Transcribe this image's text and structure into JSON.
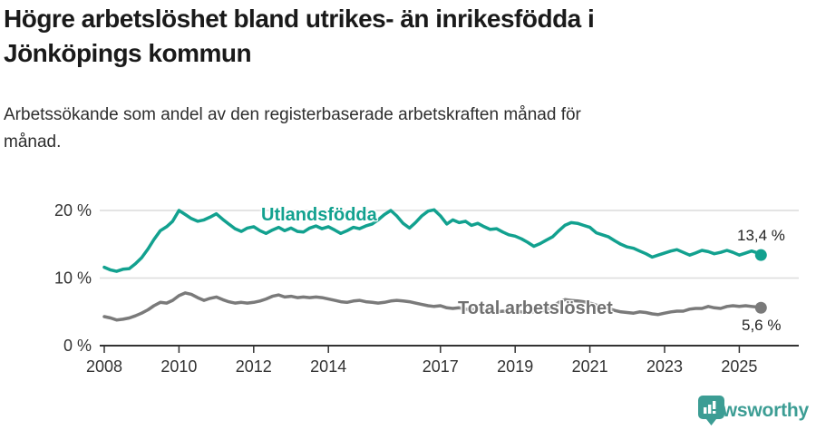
{
  "header": {
    "title": "Högre arbetslöshet bland utrikes- än inrikesfödda i\nJönköpings kommun",
    "subtitle": "Arbetssökande som andel av den registerbaserade arbetskraften månad för\nmånad."
  },
  "branding": {
    "logo_text": "Newsworthy",
    "logo_icon": "bar-chart-speech-bubble-icon",
    "logo_color": "#3c9d94"
  },
  "colors": {
    "series_foreign_born": "#12a18f",
    "series_total": "#7a7a7a",
    "grid": "#dcdcdc",
    "axis": "#333333",
    "title_text": "#1a1a1a",
    "background": "#ffffff"
  },
  "chart_data": {
    "type": "line",
    "title": "Högre arbetslöshet bland utrikes- än inrikesfödda i Jönköpings kommun",
    "subtitle": "Arbetssökande som andel av den registerbaserade arbetskraften månad för månad.",
    "x_unit": "decimal_year",
    "xlim": [
      2008,
      2025.6
    ],
    "ylim": [
      0,
      21.5
    ],
    "grid": "horizontal",
    "yticks": [
      {
        "value": 0,
        "label": "0 %"
      },
      {
        "value": 10,
        "label": "10 %"
      },
      {
        "value": 20,
        "label": "20 %"
      }
    ],
    "xticks": [
      {
        "value": 2008,
        "label": "2008"
      },
      {
        "value": 2010,
        "label": "2010"
      },
      {
        "value": 2012,
        "label": "2012"
      },
      {
        "value": 2014,
        "label": "2014"
      },
      {
        "value": 2017,
        "label": "2017"
      },
      {
        "value": 2019,
        "label": "2019"
      },
      {
        "value": 2021,
        "label": "2021"
      },
      {
        "value": 2023,
        "label": "2023"
      },
      {
        "value": 2025,
        "label": "2025"
      }
    ],
    "series": [
      {
        "name": "Utlandsfödda",
        "color": "#12a18f",
        "end_label": "13,4 %",
        "end_value": 13.4,
        "point_index": 1
      },
      {
        "name": "Total arbetslöshet",
        "color": "#7a7a7a",
        "end_label": "5,6 %",
        "end_value": 5.6,
        "point_index": 2
      }
    ],
    "points": [
      [
        2008.0,
        11.6,
        4.3
      ],
      [
        2008.17,
        11.2,
        4.1
      ],
      [
        2008.33,
        11.0,
        3.8
      ],
      [
        2008.5,
        11.3,
        3.9
      ],
      [
        2008.67,
        11.4,
        4.1
      ],
      [
        2008.83,
        12.1,
        4.4
      ],
      [
        2009.0,
        13.0,
        4.8
      ],
      [
        2009.17,
        14.3,
        5.3
      ],
      [
        2009.33,
        15.7,
        5.9
      ],
      [
        2009.5,
        17.0,
        6.4
      ],
      [
        2009.67,
        17.6,
        6.3
      ],
      [
        2009.83,
        18.4,
        6.7
      ],
      [
        2010.0,
        20.0,
        7.4
      ],
      [
        2010.17,
        19.4,
        7.8
      ],
      [
        2010.33,
        18.8,
        7.6
      ],
      [
        2010.5,
        18.4,
        7.1
      ],
      [
        2010.67,
        18.6,
        6.7
      ],
      [
        2010.83,
        19.0,
        7.0
      ],
      [
        2011.0,
        19.5,
        7.2
      ],
      [
        2011.17,
        18.7,
        6.8
      ],
      [
        2011.33,
        18.0,
        6.5
      ],
      [
        2011.5,
        17.3,
        6.3
      ],
      [
        2011.67,
        16.9,
        6.4
      ],
      [
        2011.83,
        17.4,
        6.3
      ],
      [
        2012.0,
        17.6,
        6.4
      ],
      [
        2012.17,
        17.0,
        6.6
      ],
      [
        2012.33,
        16.6,
        6.9
      ],
      [
        2012.5,
        17.1,
        7.3
      ],
      [
        2012.67,
        17.5,
        7.5
      ],
      [
        2012.83,
        17.0,
        7.2
      ],
      [
        2013.0,
        17.4,
        7.3
      ],
      [
        2013.17,
        16.9,
        7.1
      ],
      [
        2013.33,
        16.8,
        7.2
      ],
      [
        2013.5,
        17.4,
        7.1
      ],
      [
        2013.67,
        17.7,
        7.2
      ],
      [
        2013.83,
        17.3,
        7.1
      ],
      [
        2014.0,
        17.6,
        6.9
      ],
      [
        2014.17,
        17.1,
        6.7
      ],
      [
        2014.33,
        16.6,
        6.5
      ],
      [
        2014.5,
        17.0,
        6.4
      ],
      [
        2014.67,
        17.5,
        6.6
      ],
      [
        2014.83,
        17.3,
        6.7
      ],
      [
        2015.0,
        17.7,
        6.5
      ],
      [
        2015.17,
        18.0,
        6.4
      ],
      [
        2015.33,
        18.6,
        6.3
      ],
      [
        2015.5,
        19.4,
        6.4
      ],
      [
        2015.67,
        20.0,
        6.6
      ],
      [
        2015.83,
        19.2,
        6.7
      ],
      [
        2016.0,
        18.1,
        6.6
      ],
      [
        2016.17,
        17.4,
        6.5
      ],
      [
        2016.33,
        18.2,
        6.3
      ],
      [
        2016.5,
        19.2,
        6.1
      ],
      [
        2016.67,
        19.9,
        5.9
      ],
      [
        2016.83,
        20.1,
        5.8
      ],
      [
        2017.0,
        19.2,
        5.9
      ],
      [
        2017.17,
        18.0,
        5.6
      ],
      [
        2017.33,
        18.6,
        5.5
      ],
      [
        2017.5,
        18.2,
        5.6
      ],
      [
        2017.67,
        18.4,
        5.4
      ],
      [
        2017.83,
        17.8,
        5.3
      ],
      [
        2018.0,
        18.1,
        5.4
      ],
      [
        2018.17,
        17.6,
        5.2
      ],
      [
        2018.33,
        17.2,
        5.1
      ],
      [
        2018.5,
        17.3,
        5.0
      ],
      [
        2018.67,
        16.8,
        5.1
      ],
      [
        2018.83,
        16.4,
        5.0
      ],
      [
        2019.0,
        16.2,
        5.1
      ],
      [
        2019.17,
        15.8,
        5.0
      ],
      [
        2019.33,
        15.3,
        4.9
      ],
      [
        2019.5,
        14.7,
        5.0
      ],
      [
        2019.67,
        15.1,
        5.1
      ],
      [
        2019.83,
        15.6,
        5.3
      ],
      [
        2020.0,
        16.1,
        5.7
      ],
      [
        2020.17,
        17.0,
        6.4
      ],
      [
        2020.33,
        17.8,
        6.8
      ],
      [
        2020.5,
        18.2,
        6.7
      ],
      [
        2020.67,
        18.1,
        6.6
      ],
      [
        2020.83,
        17.8,
        6.5
      ],
      [
        2021.0,
        17.5,
        6.3
      ],
      [
        2021.17,
        16.7,
        6.0
      ],
      [
        2021.33,
        16.4,
        5.8
      ],
      [
        2021.5,
        16.1,
        5.5
      ],
      [
        2021.67,
        15.5,
        5.2
      ],
      [
        2021.83,
        15.0,
        5.0
      ],
      [
        2022.0,
        14.6,
        4.9
      ],
      [
        2022.17,
        14.4,
        4.8
      ],
      [
        2022.33,
        14.0,
        5.0
      ],
      [
        2022.5,
        13.6,
        4.9
      ],
      [
        2022.67,
        13.1,
        4.7
      ],
      [
        2022.83,
        13.4,
        4.6
      ],
      [
        2023.0,
        13.7,
        4.8
      ],
      [
        2023.17,
        14.0,
        5.0
      ],
      [
        2023.33,
        14.2,
        5.1
      ],
      [
        2023.5,
        13.8,
        5.1
      ],
      [
        2023.67,
        13.4,
        5.4
      ],
      [
        2023.83,
        13.7,
        5.5
      ],
      [
        2024.0,
        14.1,
        5.5
      ],
      [
        2024.17,
        13.9,
        5.8
      ],
      [
        2024.33,
        13.6,
        5.6
      ],
      [
        2024.5,
        13.8,
        5.5
      ],
      [
        2024.67,
        14.1,
        5.8
      ],
      [
        2024.83,
        13.8,
        5.9
      ],
      [
        2025.0,
        13.4,
        5.8
      ],
      [
        2025.17,
        13.7,
        5.9
      ],
      [
        2025.33,
        14.0,
        5.8
      ],
      [
        2025.5,
        13.7,
        5.7
      ],
      [
        2025.58,
        13.4,
        5.6
      ]
    ],
    "legend_position": "inline-labels"
  }
}
